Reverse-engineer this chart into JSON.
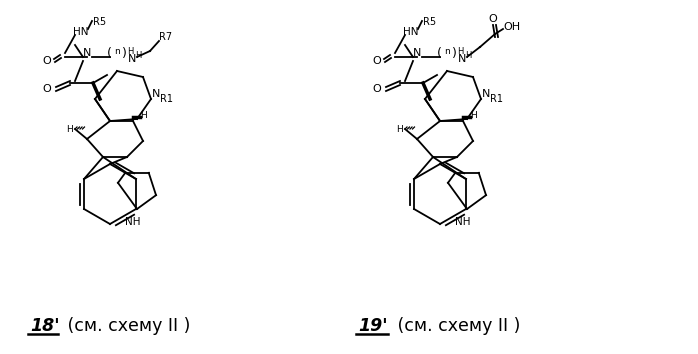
{
  "figsize": [
    6.98,
    3.54
  ],
  "dpi": 100,
  "background_color": "#ffffff",
  "label_left_number": "18'",
  "label_right_number": "19'",
  "label_suffix": " (см. схему II )",
  "label_fontsize": 12.5,
  "structure_color": "#000000",
  "image_b64": ""
}
